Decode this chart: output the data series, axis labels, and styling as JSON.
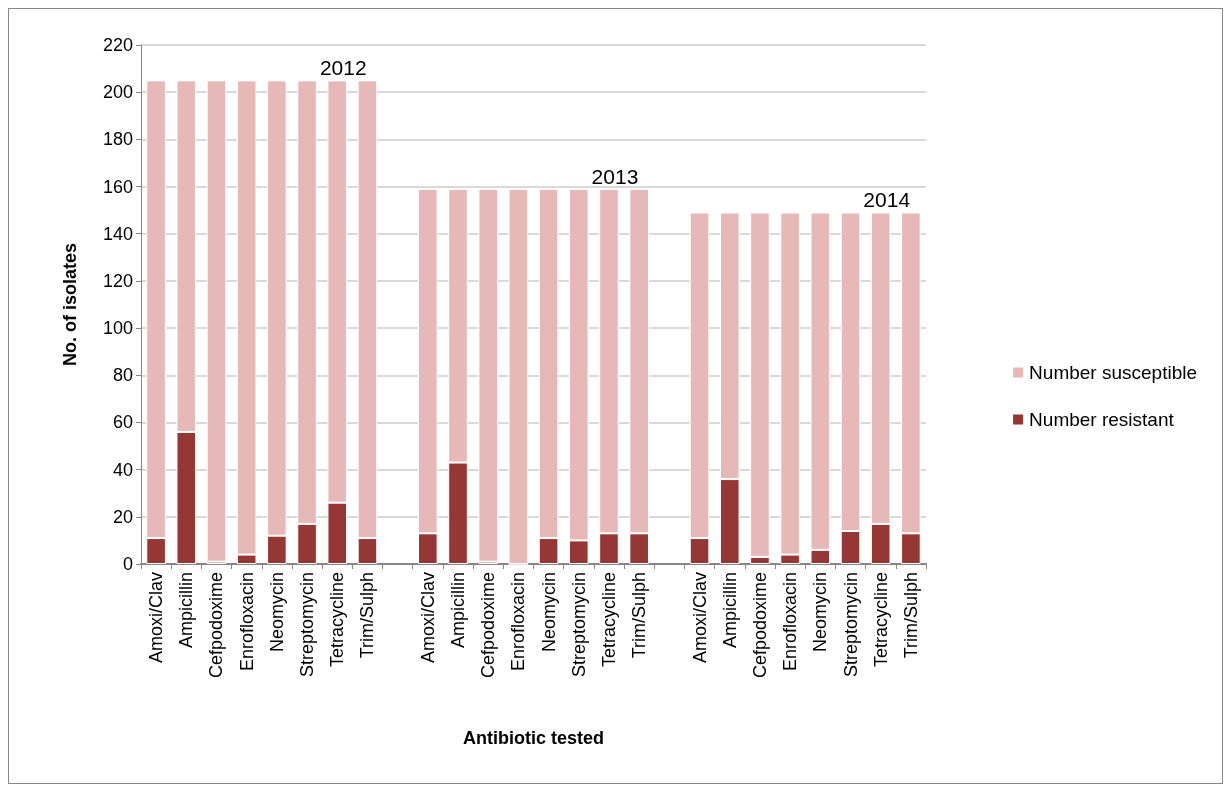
{
  "chart_data": {
    "type": "bar",
    "stacked": true,
    "xlabel": "Antibiotic tested",
    "ylabel": "No. of isolates",
    "categories": [
      "Amoxi/Clav",
      "Ampicillin",
      "Cefpodoxime",
      "Enrofloxacin",
      "Neomycin",
      "Streptomycin",
      "Tetracycline",
      "Trim/Sulph",
      null,
      "Amoxi/Clav",
      "Ampicillin",
      "Cefpodoxime",
      "Enrofloxacin",
      "Neomycin",
      "Streptomycin",
      "Tetracycline",
      "Trim/Sulph",
      null,
      "Amoxi/Clav",
      "Ampicillin",
      "Cefpodoxime",
      "Enrofloxacin",
      "Neomycin",
      "Streptomycin",
      "Tetracycline",
      "Trim/Sulph"
    ],
    "series": [
      {
        "name": "Number resistant",
        "color": "#953735",
        "values": [
          11,
          56,
          1,
          4,
          12,
          17,
          26,
          11,
          null,
          13,
          43,
          1,
          0,
          11,
          10,
          13,
          13,
          null,
          11,
          36,
          3,
          4,
          6,
          14,
          17,
          13
        ]
      },
      {
        "name": "Number susceptible",
        "color": "#e6b9b8",
        "values": [
          194,
          149,
          204,
          201,
          193,
          188,
          179,
          194,
          null,
          146,
          116,
          158,
          159,
          148,
          149,
          146,
          146,
          null,
          138,
          113,
          146,
          145,
          143,
          135,
          132,
          136
        ]
      }
    ],
    "annotations": [
      "2012",
      "2013",
      "2014"
    ],
    "ylim": [
      0,
      220
    ],
    "yticks": [
      0,
      20,
      40,
      60,
      80,
      100,
      120,
      140,
      160,
      180,
      200,
      220
    ],
    "grid": "y",
    "legend": "right"
  }
}
